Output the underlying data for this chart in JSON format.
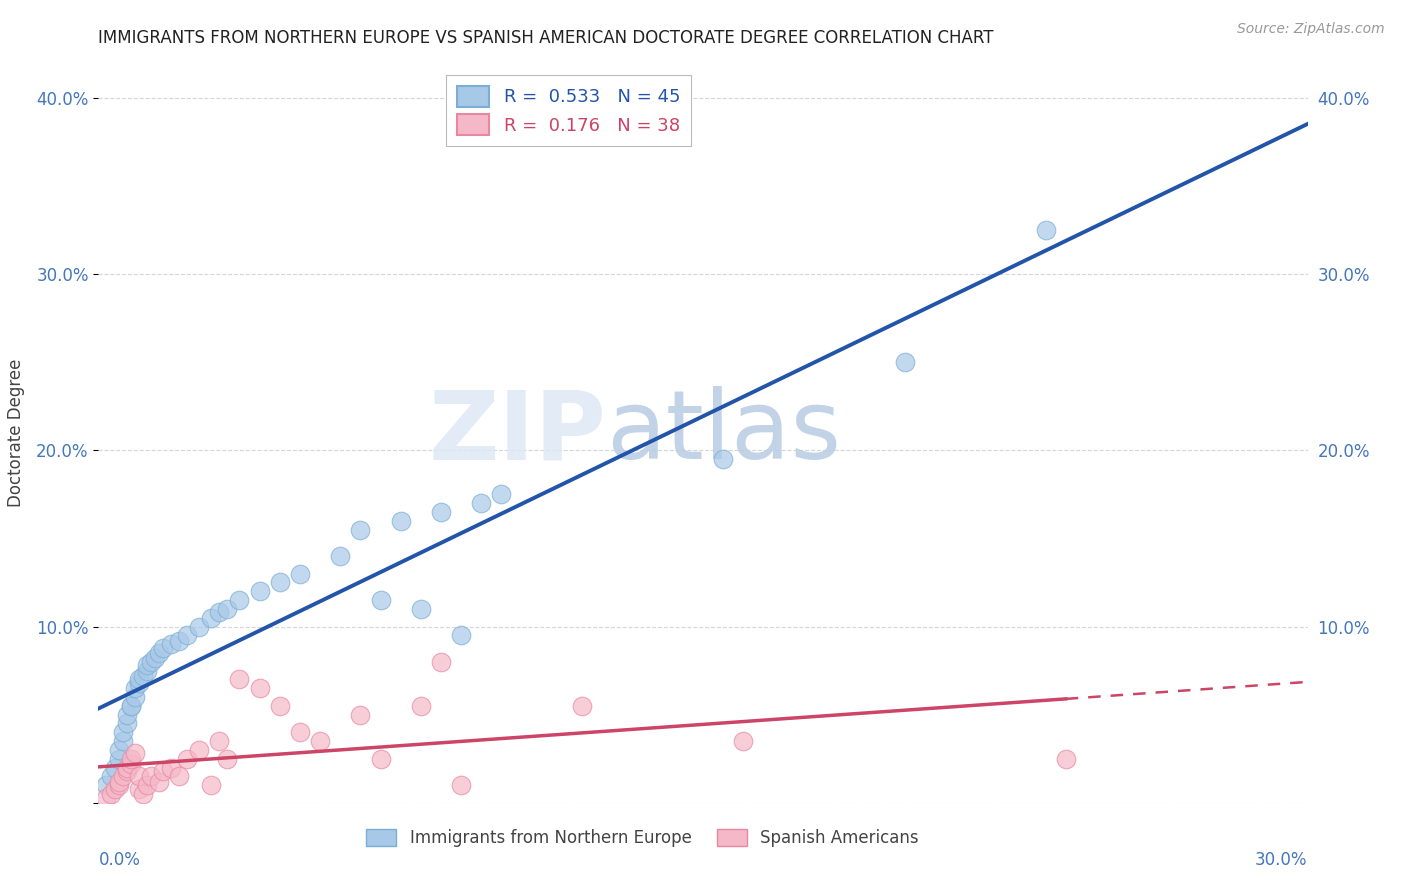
{
  "title": "IMMIGRANTS FROM NORTHERN EUROPE VS SPANISH AMERICAN DOCTORATE DEGREE CORRELATION CHART",
  "source": "Source: ZipAtlas.com",
  "ylabel": "Doctorate Degree",
  "yticks": [
    0.0,
    0.1,
    0.2,
    0.3,
    0.4
  ],
  "xlim": [
    0.0,
    0.3
  ],
  "ylim": [
    0.0,
    0.42
  ],
  "r_blue": 0.533,
  "n_blue": 45,
  "r_pink": 0.176,
  "n_pink": 38,
  "blue_color": "#a8c8e8",
  "blue_edge_color": "#7aaed4",
  "pink_color": "#f5b8c8",
  "pink_edge_color": "#e888a0",
  "blue_line_color": "#2255aa",
  "pink_line_color": "#cc4466",
  "watermark_zip": "ZIP",
  "watermark_atlas": "atlas",
  "background_color": "#ffffff",
  "grid_color": "#cccccc",
  "blue_x": [
    0.002,
    0.003,
    0.004,
    0.005,
    0.005,
    0.006,
    0.006,
    0.007,
    0.007,
    0.008,
    0.008,
    0.009,
    0.009,
    0.01,
    0.01,
    0.011,
    0.012,
    0.012,
    0.013,
    0.014,
    0.015,
    0.016,
    0.018,
    0.02,
    0.022,
    0.025,
    0.028,
    0.03,
    0.032,
    0.035,
    0.04,
    0.045,
    0.05,
    0.06,
    0.065,
    0.07,
    0.075,
    0.08,
    0.085,
    0.09,
    0.095,
    0.1,
    0.155,
    0.2,
    0.235
  ],
  "blue_y": [
    0.01,
    0.015,
    0.02,
    0.025,
    0.03,
    0.035,
    0.04,
    0.045,
    0.05,
    0.055,
    0.055,
    0.06,
    0.065,
    0.068,
    0.07,
    0.072,
    0.075,
    0.078,
    0.08,
    0.082,
    0.085,
    0.088,
    0.09,
    0.092,
    0.095,
    0.1,
    0.105,
    0.108,
    0.11,
    0.115,
    0.12,
    0.125,
    0.13,
    0.14,
    0.155,
    0.115,
    0.16,
    0.11,
    0.165,
    0.095,
    0.17,
    0.175,
    0.195,
    0.25,
    0.325
  ],
  "pink_x": [
    0.002,
    0.003,
    0.004,
    0.005,
    0.005,
    0.006,
    0.007,
    0.007,
    0.008,
    0.008,
    0.009,
    0.01,
    0.01,
    0.011,
    0.012,
    0.013,
    0.015,
    0.016,
    0.018,
    0.02,
    0.022,
    0.025,
    0.028,
    0.03,
    0.032,
    0.035,
    0.04,
    0.045,
    0.05,
    0.055,
    0.065,
    0.07,
    0.08,
    0.085,
    0.09,
    0.12,
    0.16,
    0.24
  ],
  "pink_y": [
    0.003,
    0.005,
    0.008,
    0.01,
    0.012,
    0.015,
    0.018,
    0.02,
    0.022,
    0.025,
    0.028,
    0.008,
    0.015,
    0.005,
    0.01,
    0.015,
    0.012,
    0.018,
    0.02,
    0.015,
    0.025,
    0.03,
    0.01,
    0.035,
    0.025,
    0.07,
    0.065,
    0.055,
    0.04,
    0.035,
    0.05,
    0.025,
    0.055,
    0.08,
    0.01,
    0.055,
    0.035,
    0.025
  ]
}
